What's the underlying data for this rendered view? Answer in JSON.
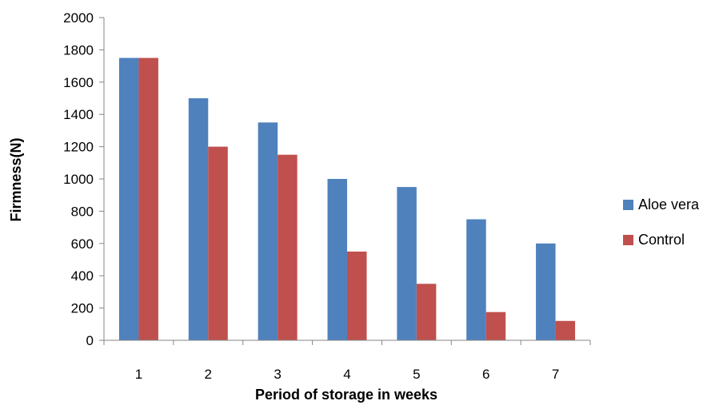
{
  "chart_data": {
    "type": "bar",
    "title": "",
    "xlabel": "Period of storage in weeks",
    "ylabel": "Firmness(N)",
    "categories": [
      "1",
      "2",
      "3",
      "4",
      "5",
      "6",
      "7"
    ],
    "ylim": [
      0,
      2000
    ],
    "yticks": [
      0,
      200,
      400,
      600,
      800,
      1000,
      1200,
      1400,
      1600,
      1800,
      2000
    ],
    "grid": false,
    "legend_position": "right",
    "series": [
      {
        "name": "Aloe vera",
        "color": "#4F81BD",
        "values": [
          1750,
          1500,
          1350,
          1000,
          950,
          750,
          600
        ]
      },
      {
        "name": "Control",
        "color": "#C0504D",
        "values": [
          1750,
          1200,
          1150,
          550,
          350,
          175,
          120
        ]
      }
    ]
  }
}
